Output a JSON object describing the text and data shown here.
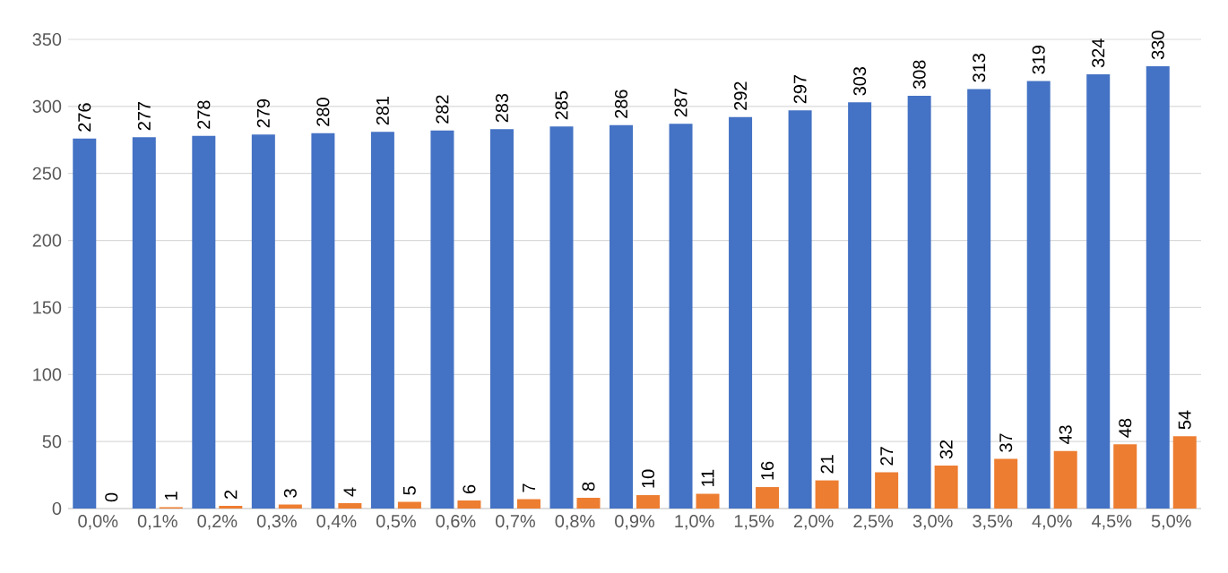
{
  "chart_data": {
    "type": "bar",
    "categories": [
      "0,0%",
      "0,1%",
      "0,2%",
      "0,3%",
      "0,4%",
      "0,5%",
      "0,6%",
      "0,7%",
      "0,8%",
      "0,9%",
      "1,0%",
      "1,5%",
      "2,0%",
      "2,5%",
      "3,0%",
      "3,5%",
      "4,0%",
      "4,5%",
      "5,0%"
    ],
    "series": [
      {
        "color": "#4472c4",
        "values": [
          276,
          277,
          278,
          279,
          280,
          281,
          282,
          283,
          285,
          286,
          287,
          292,
          297,
          303,
          308,
          313,
          319,
          324,
          330
        ]
      },
      {
        "color": "#ed7d31",
        "values": [
          0,
          1,
          2,
          3,
          4,
          5,
          6,
          7,
          8,
          10,
          11,
          16,
          21,
          27,
          32,
          37,
          43,
          48,
          54
        ]
      }
    ],
    "ylim": [
      0,
      350
    ],
    "yticks": [
      0,
      50,
      100,
      150,
      200,
      250,
      300,
      350
    ],
    "grid": "y",
    "data_labels": true
  }
}
